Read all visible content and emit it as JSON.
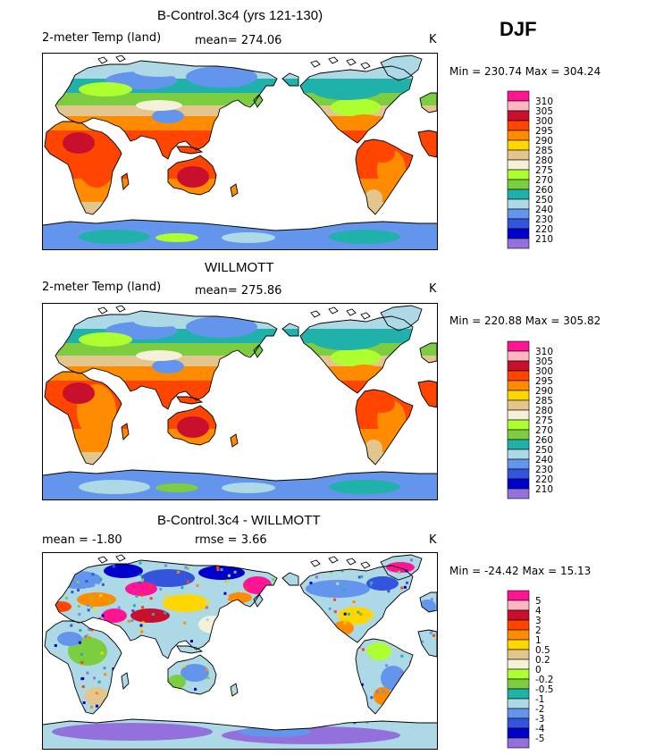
{
  "season": "DJF",
  "panels": [
    {
      "title": "B-Control.3c4 (yrs 121-130)",
      "left_label": "2-meter Temp (land)",
      "mean_label": "mean= 274.06",
      "units": "K",
      "minmax": "Min = 230.74 Max = 304.24",
      "colorbar_labels": [
        "310",
        "305",
        "300",
        "295",
        "290",
        "285",
        "280",
        "275",
        "270",
        "260",
        "250",
        "240",
        "230",
        "220",
        "210"
      ]
    },
    {
      "title": "WILLMOTT",
      "left_label": "2-meter Temp (land)",
      "mean_label": "mean= 275.86",
      "units": "K",
      "minmax": "Min = 220.88 Max = 305.82",
      "colorbar_labels": [
        "310",
        "305",
        "300",
        "295",
        "290",
        "285",
        "280",
        "275",
        "270",
        "260",
        "250",
        "240",
        "230",
        "220",
        "210"
      ]
    },
    {
      "title": "B-Control.3c4 - WILLMOTT",
      "left_label": "mean =   -1.80",
      "mean_label": "rmse =    3.66",
      "units": "K",
      "minmax": "Min = -24.42 Max =  15.13",
      "colorbar_labels": [
        "5",
        "4",
        "3",
        "2",
        "1",
        "0.5",
        "0.2",
        "0",
        "-0.2",
        "-0.5",
        "-1",
        "-2",
        "-3",
        "-4",
        "-5"
      ]
    }
  ],
  "colorbar_colors": [
    "#ff1493",
    "#ffb6c1",
    "#c8102e",
    "#ff4500",
    "#ff8c00",
    "#ffd700",
    "#e3c58e",
    "#f5f0d8",
    "#adff2f",
    "#7ccd3f",
    "#20b2aa",
    "#add8e6",
    "#6495ed",
    "#3355dd",
    "#0000cd",
    "#9370db"
  ],
  "colors": {
    "ocean": "#ffffff",
    "coastline": "#000000"
  }
}
